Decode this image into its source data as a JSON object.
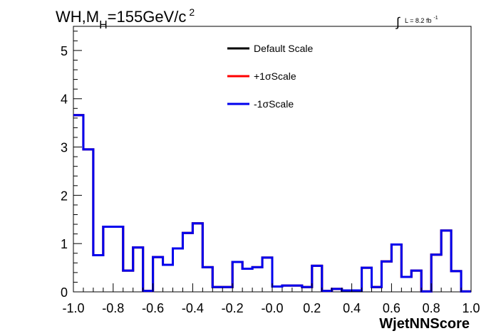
{
  "chart_data": {
    "type": "line",
    "title": "WH,M",
    "title_sub": "H",
    "title_rest": "=155GeV/c",
    "title_sup": "2",
    "lumi": "L = 8.2 fb",
    "lumi_sup": "-1",
    "xlabel": "WjetNNScore",
    "xlim": [
      -1.0,
      1.0
    ],
    "ylim": [
      0,
      5.5
    ],
    "grid": false,
    "legend_position": "top-center",
    "x_ticks": [
      "-1.0",
      "-0.8",
      "-0.6",
      "-0.4",
      "-0.2",
      "-0.0",
      "0.2",
      "0.4",
      "0.6",
      "0.8",
      "1.0"
    ],
    "y_ticks": [
      "0",
      "1",
      "2",
      "3",
      "4",
      "5"
    ],
    "bin_edges": [
      -1.0,
      -0.95,
      -0.9,
      -0.85,
      -0.8,
      -0.75,
      -0.7,
      -0.65,
      -0.6,
      -0.55,
      -0.5,
      -0.45,
      -0.4,
      -0.35,
      -0.3,
      -0.25,
      -0.2,
      -0.15,
      -0.1,
      -0.05,
      0.0,
      0.05,
      0.1,
      0.15,
      0.2,
      0.25,
      0.3,
      0.35,
      0.4,
      0.45,
      0.5,
      0.55,
      0.6,
      0.65,
      0.7,
      0.75,
      0.8,
      0.85,
      0.9,
      0.95,
      1.0
    ],
    "series": [
      {
        "name": "Default Scale",
        "color": "#000000",
        "values": [
          3.66,
          2.95,
          0.76,
          1.35,
          1.35,
          0.44,
          0.92,
          0.02,
          0.72,
          0.56,
          0.9,
          1.22,
          1.42,
          0.51,
          0.1,
          0.1,
          0.62,
          0.48,
          0.51,
          0.71,
          0.11,
          0.13,
          0.13,
          0.1,
          0.54,
          0.02,
          0.06,
          0.03,
          0.03,
          0.5,
          0.1,
          0.63,
          0.98,
          0.31,
          0.44,
          0.01,
          0.77,
          1.27,
          0.43,
          0.01
        ]
      },
      {
        "name": "+1σScale",
        "color": "#ff0000",
        "values": [
          3.66,
          2.95,
          0.76,
          1.35,
          1.35,
          0.44,
          0.92,
          0.02,
          0.72,
          0.56,
          0.9,
          1.22,
          1.42,
          0.51,
          0.1,
          0.1,
          0.62,
          0.48,
          0.51,
          0.71,
          0.11,
          0.13,
          0.13,
          0.1,
          0.54,
          0.02,
          0.06,
          0.03,
          0.03,
          0.5,
          0.1,
          0.63,
          0.98,
          0.31,
          0.44,
          0.01,
          0.77,
          1.27,
          0.43,
          0.01
        ]
      },
      {
        "name": "-1σScale",
        "color": "#0000ee",
        "values": [
          3.66,
          2.95,
          0.76,
          1.35,
          1.35,
          0.44,
          0.92,
          0.02,
          0.72,
          0.56,
          0.9,
          1.22,
          1.42,
          0.51,
          0.1,
          0.1,
          0.62,
          0.48,
          0.51,
          0.71,
          0.11,
          0.13,
          0.13,
          0.1,
          0.54,
          0.02,
          0.06,
          0.03,
          0.03,
          0.5,
          0.1,
          0.63,
          0.98,
          0.31,
          0.44,
          0.01,
          0.77,
          1.27,
          0.43,
          0.01
        ]
      }
    ]
  }
}
